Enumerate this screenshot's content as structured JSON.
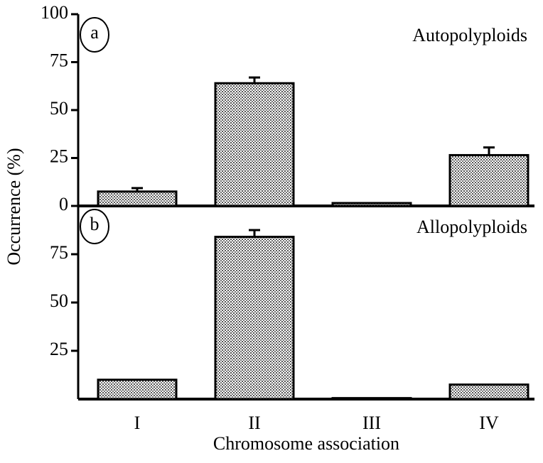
{
  "chart_data": [
    {
      "type": "bar",
      "label": "a",
      "annotation": "Autopolyploids",
      "ylabel": "Occurrence (%)",
      "values": [
        7.5,
        64,
        1.5,
        26.5
      ],
      "errors": [
        1.8,
        3,
        null,
        4
      ],
      "ylim": [
        0,
        100
      ],
      "yticks": [
        0,
        25,
        50,
        75,
        100
      ],
      "color": "#ffffff"
    },
    {
      "type": "bar",
      "label": "b",
      "annotation": "Allopolyploids",
      "xlabel": "Chromosome association",
      "categories": [
        "I",
        "II",
        "III",
        "IV"
      ],
      "values": [
        10,
        84,
        0.5,
        7.5
      ],
      "errors": [
        null,
        3.5,
        null,
        null
      ],
      "ylim": [
        0,
        100
      ],
      "yticks": [
        25,
        50,
        75
      ],
      "color": "#ffffff"
    }
  ]
}
